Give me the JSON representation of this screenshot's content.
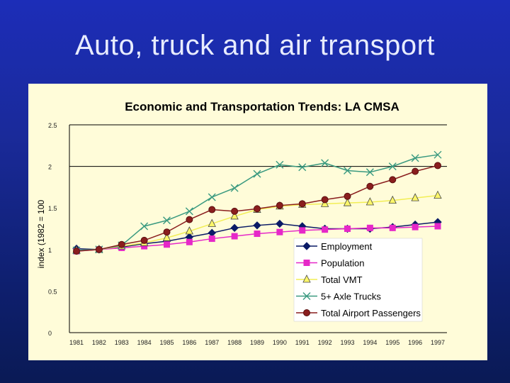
{
  "slide": {
    "title": "Auto, truck and air transport"
  },
  "chart_data": {
    "type": "line",
    "title": "Economic and Transportation Trends:  LA CMSA",
    "xlabel": "",
    "ylabel": "index (1982 = 100",
    "ylim": [
      0,
      2.5
    ],
    "yticks": [
      "0",
      "0.5",
      "1",
      "1.5",
      "2",
      "2.5"
    ],
    "ytick_values": [
      0,
      0.5,
      1,
      1.5,
      2,
      2.5
    ],
    "categories": [
      "1981",
      "1982",
      "1983",
      "1984",
      "1985",
      "1986",
      "1987",
      "1988",
      "1989",
      "1990",
      "1991",
      "1992",
      "1993",
      "1994",
      "1995",
      "1996",
      "1997"
    ],
    "legend_position": "bottom-right",
    "series": [
      {
        "name": "Employment",
        "marker": "diamond",
        "color": "#0a1a66",
        "values": [
          1.01,
          1.0,
          1.03,
          1.07,
          1.1,
          1.15,
          1.2,
          1.26,
          1.29,
          1.31,
          1.28,
          1.25,
          1.25,
          1.25,
          1.27,
          1.3,
          1.33
        ]
      },
      {
        "name": "Population",
        "marker": "square",
        "color": "#e628c8",
        "values": [
          0.98,
          1.0,
          1.02,
          1.04,
          1.06,
          1.09,
          1.13,
          1.16,
          1.19,
          1.21,
          1.23,
          1.24,
          1.25,
          1.26,
          1.26,
          1.27,
          1.28
        ]
      },
      {
        "name": "Total VMT",
        "marker": "triangle",
        "color": "#f2ee55",
        "values": [
          0.99,
          1.0,
          1.04,
          1.08,
          1.14,
          1.22,
          1.31,
          1.4,
          1.48,
          1.52,
          1.54,
          1.55,
          1.56,
          1.57,
          1.59,
          1.62,
          1.65
        ]
      },
      {
        "name": "5+ Axle Trucks",
        "marker": "x",
        "color": "#3a9a80",
        "values": [
          0.99,
          1.0,
          1.05,
          1.28,
          1.35,
          1.46,
          1.63,
          1.74,
          1.91,
          2.02,
          1.99,
          2.04,
          1.95,
          1.93,
          2.0,
          2.1,
          2.14
        ]
      },
      {
        "name": "Total Airport Passengers",
        "marker": "circle",
        "color": "#8a1e1e",
        "values": [
          0.98,
          1.0,
          1.06,
          1.11,
          1.21,
          1.36,
          1.48,
          1.46,
          1.49,
          1.53,
          1.55,
          1.6,
          1.64,
          1.76,
          1.84,
          1.94,
          2.01
        ]
      }
    ]
  }
}
